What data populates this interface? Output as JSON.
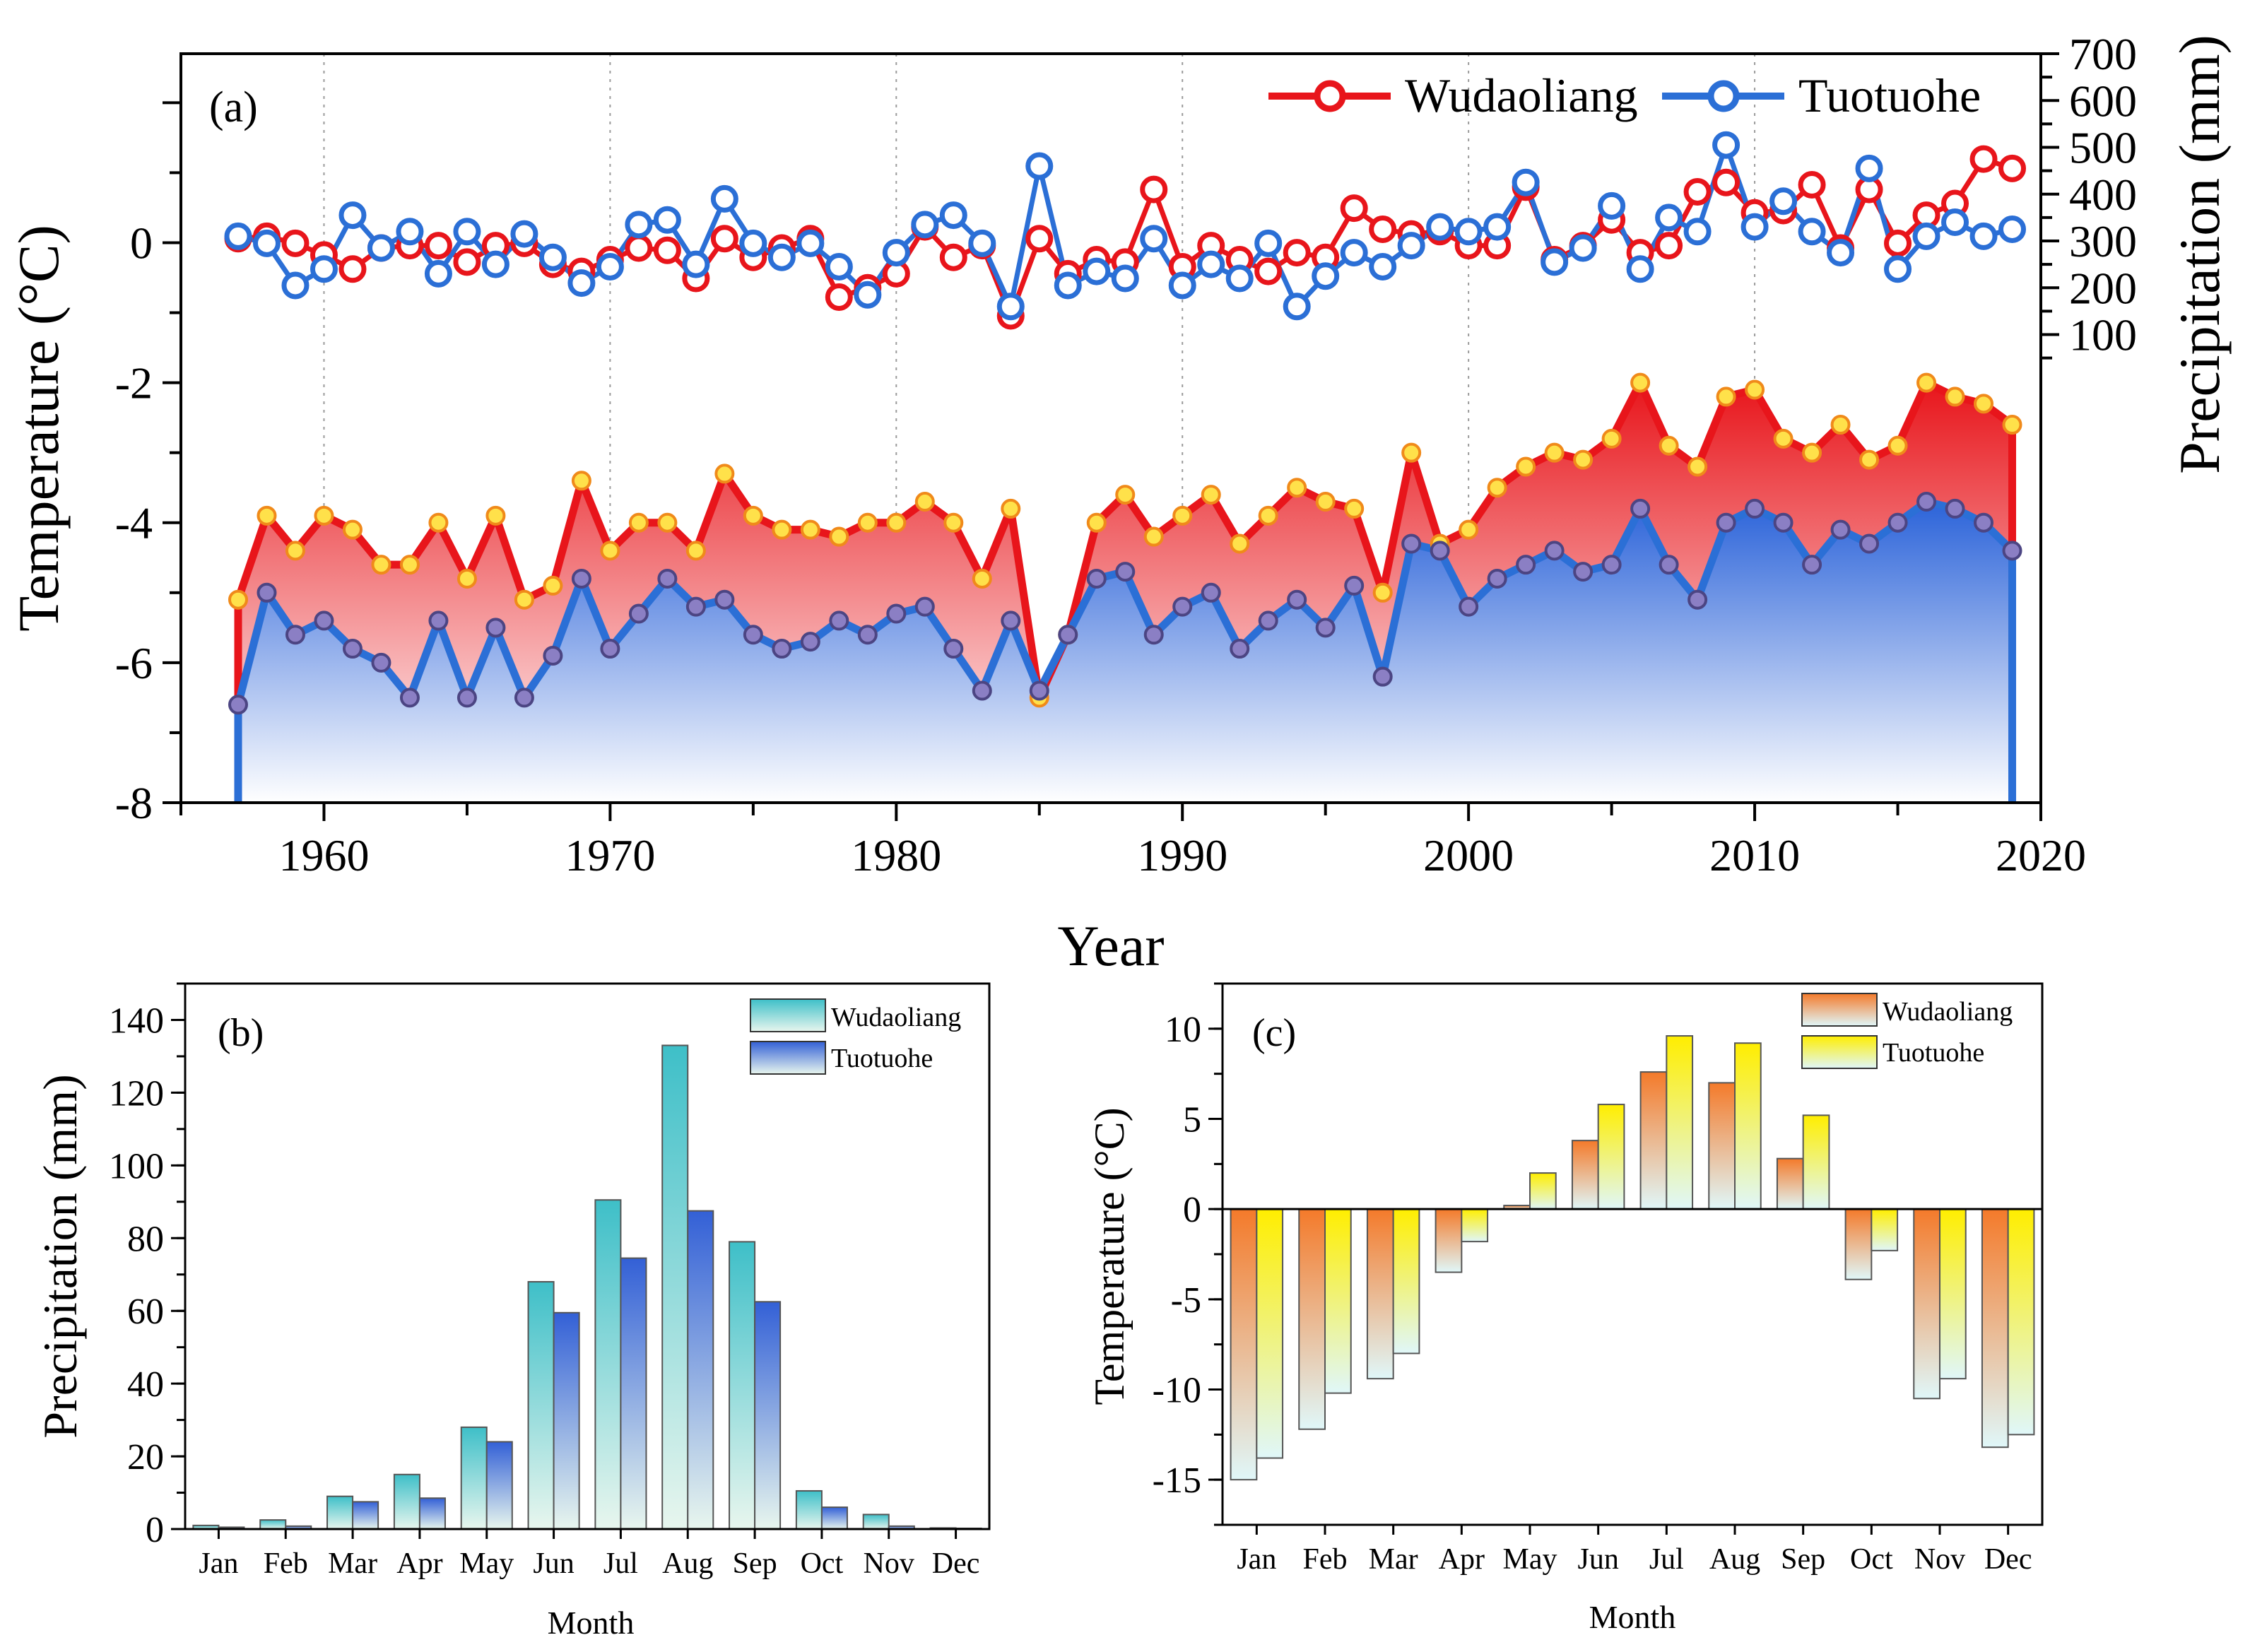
{
  "colors": {
    "wudao_red": "#e8151b",
    "tuotuo_blue": "#2b6fd6",
    "yellow_marker": "#ffe14a",
    "purple_marker": "#8b7fc4",
    "teal": "#49c6cc",
    "blue_bar": "#3764d8",
    "bar_pale": "#e8f6ee",
    "orange": "#f47a2a",
    "yellow": "#ffee00",
    "pale_cyan": "#e0f7f9"
  },
  "chart_data": [
    {
      "id": "a",
      "type": "line",
      "panel_label": "(a)",
      "xlabel": "Year",
      "ylabel": "Temperature (°C)",
      "ylabel_right": "Precipitation (mm)",
      "xlim": [
        1955,
        2020
      ],
      "ylim": [
        -8,
        2.7
      ],
      "ylim_right": [
        -900,
        700
      ],
      "xticks": [
        1960,
        1970,
        1980,
        1990,
        2000,
        2010,
        2020
      ],
      "yticks": [
        0,
        -2,
        -4,
        -6,
        -8
      ],
      "yticks_right": [
        100,
        200,
        300,
        400,
        500,
        600,
        700
      ],
      "legend": [
        "Wudaoliang",
        "Tuotuohe"
      ],
      "legend_position": "top-right",
      "grid": "vertical dotted at decades",
      "x": [
        1957,
        1958,
        1959,
        1960,
        1961,
        1962,
        1963,
        1964,
        1965,
        1966,
        1967,
        1968,
        1969,
        1970,
        1971,
        1972,
        1973,
        1974,
        1975,
        1976,
        1977,
        1978,
        1979,
        1980,
        1981,
        1982,
        1983,
        1984,
        1985,
        1986,
        1987,
        1988,
        1989,
        1990,
        1991,
        1992,
        1993,
        1994,
        1995,
        1996,
        1997,
        1998,
        1999,
        2000,
        2001,
        2002,
        2003,
        2004,
        2005,
        2006,
        2007,
        2008,
        2009,
        2010,
        2011,
        2012,
        2013,
        2014,
        2015,
        2016,
        2017,
        2018,
        2019
      ],
      "series": [
        {
          "name": "Wudaoliang",
          "kind": "temperature",
          "axis": "left",
          "values": [
            -5.1,
            -3.9,
            -4.4,
            -3.9,
            -4.1,
            -4.6,
            -4.6,
            -4.0,
            -4.8,
            -3.9,
            -5.1,
            -4.9,
            -3.4,
            -4.4,
            -4.0,
            -4.0,
            -4.4,
            -3.3,
            -3.9,
            -4.1,
            -4.1,
            -4.2,
            -4.0,
            -4.0,
            -3.7,
            -4.0,
            -4.8,
            -3.8,
            -6.5,
            -5.6,
            -4.0,
            -3.6,
            -4.2,
            -3.9,
            -3.6,
            -4.3,
            -3.9,
            -3.5,
            -3.7,
            -3.8,
            -5.0,
            -3.0,
            -4.3,
            -4.1,
            -3.5,
            -3.2,
            -3.0,
            -3.1,
            -2.8,
            -2.0,
            -2.9,
            -3.2,
            -2.2,
            -2.1,
            -2.8,
            -3.0,
            -2.6,
            -3.1,
            -2.9,
            -2.0,
            -2.2,
            -2.3,
            -2.6
          ]
        },
        {
          "name": "Tuotuohe",
          "kind": "temperature",
          "axis": "left",
          "values": [
            -6.6,
            -5.0,
            -5.6,
            -5.4,
            -5.8,
            -6.0,
            -6.5,
            -5.4,
            -6.5,
            -5.5,
            -6.5,
            -5.9,
            -4.8,
            -5.8,
            -5.3,
            -4.8,
            -5.2,
            -5.1,
            -5.6,
            -5.8,
            -5.7,
            -5.4,
            -5.6,
            -5.3,
            -5.2,
            -5.8,
            -6.4,
            -5.4,
            -6.4,
            -5.6,
            -4.8,
            -4.7,
            -5.6,
            -5.2,
            -5.0,
            -5.8,
            -5.4,
            -5.1,
            -5.5,
            -4.9,
            -6.2,
            -4.3,
            -4.4,
            -5.2,
            -4.8,
            -4.6,
            -4.4,
            -4.7,
            -4.6,
            -3.8,
            -4.6,
            -5.1,
            -4.0,
            -3.8,
            -4.0,
            -4.6,
            -4.1,
            -4.3,
            -4.0,
            -3.7,
            -3.8,
            -4.0,
            -4.4
          ]
        },
        {
          "name": "Wudaoliang",
          "kind": "precipitation",
          "axis": "right",
          "values": [
            305,
            310,
            295,
            270,
            240,
            285,
            290,
            290,
            255,
            290,
            295,
            250,
            235,
            260,
            285,
            280,
            220,
            305,
            265,
            285,
            305,
            180,
            200,
            230,
            330,
            265,
            290,
            140,
            305,
            230,
            260,
            255,
            410,
            245,
            290,
            260,
            235,
            275,
            265,
            370,
            325,
            315,
            320,
            290,
            290,
            415,
            260,
            290,
            345,
            275,
            290,
            405,
            425,
            360,
            365,
            420,
            285,
            410,
            295,
            355,
            380,
            475,
            455
          ]
        },
        {
          "name": "Tuotuohe",
          "kind": "precipitation",
          "axis": "right",
          "values": [
            310,
            295,
            205,
            240,
            355,
            285,
            320,
            230,
            320,
            250,
            315,
            265,
            210,
            245,
            335,
            345,
            250,
            390,
            295,
            265,
            295,
            245,
            185,
            275,
            335,
            355,
            295,
            160,
            460,
            205,
            235,
            220,
            305,
            205,
            250,
            220,
            295,
            160,
            225,
            275,
            245,
            290,
            330,
            320,
            330,
            425,
            255,
            285,
            375,
            240,
            350,
            320,
            505,
            330,
            385,
            320,
            275,
            455,
            240,
            310,
            340,
            310,
            325
          ]
        }
      ]
    },
    {
      "id": "b",
      "type": "bar",
      "panel_label": "(b)",
      "xlabel": "Month",
      "ylabel": "Precipitation (mm)",
      "ylim": [
        0,
        150
      ],
      "yticks": [
        0,
        20,
        40,
        60,
        80,
        100,
        120,
        140
      ],
      "categories": [
        "Jan",
        "Feb",
        "Mar",
        "Apr",
        "May",
        "Jun",
        "Jul",
        "Aug",
        "Sep",
        "Oct",
        "Nov",
        "Dec"
      ],
      "legend": [
        "Wudaoliang",
        "Tuotuohe"
      ],
      "legend_position": "top-right",
      "series": [
        {
          "name": "Wudaoliang",
          "values": [
            1.0,
            2.5,
            9.0,
            15.0,
            28.0,
            68.0,
            90.5,
            133.0,
            79.0,
            10.5,
            4.0,
            0.3
          ]
        },
        {
          "name": "Tuotuohe",
          "values": [
            0.5,
            0.8,
            7.5,
            8.5,
            24.0,
            59.5,
            74.5,
            87.5,
            62.5,
            6.0,
            0.8,
            0.2
          ]
        }
      ]
    },
    {
      "id": "c",
      "type": "bar",
      "panel_label": "(c)",
      "xlabel": "Month",
      "ylabel": "Temperature (°C)",
      "ylim": [
        -17.5,
        12.5
      ],
      "yticks": [
        10,
        5,
        0,
        -5,
        -10,
        -15
      ],
      "categories": [
        "Jan",
        "Feb",
        "Mar",
        "Apr",
        "May",
        "Jun",
        "Jul",
        "Aug",
        "Sep",
        "Oct",
        "Nov",
        "Dec"
      ],
      "legend": [
        "Wudaoliang",
        "Tuotuohe"
      ],
      "legend_position": "top-right",
      "series": [
        {
          "name": "Wudaoliang",
          "values": [
            -15.0,
            -12.2,
            -9.4,
            -3.5,
            0.2,
            3.8,
            7.6,
            7.0,
            2.8,
            -3.9,
            -10.5,
            -13.2
          ]
        },
        {
          "name": "Tuotuohe",
          "values": [
            -13.8,
            -10.2,
            -8.0,
            -1.8,
            2.0,
            5.8,
            9.6,
            9.2,
            5.2,
            -2.3,
            -9.4,
            -12.5
          ]
        }
      ]
    }
  ]
}
